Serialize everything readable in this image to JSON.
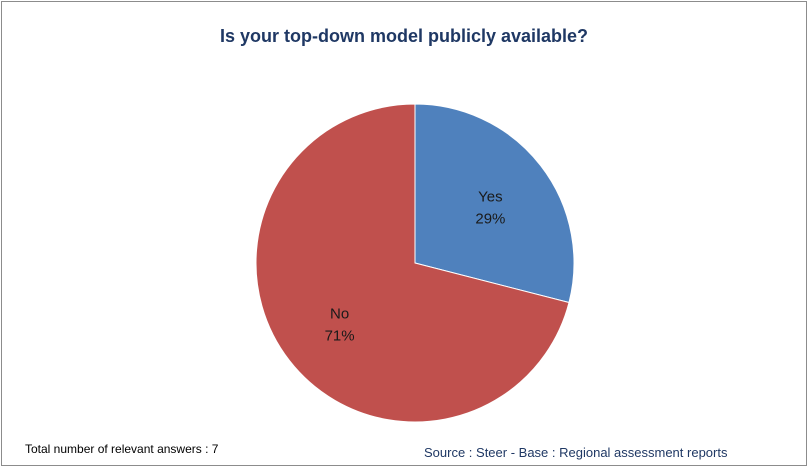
{
  "chart_data": {
    "type": "pie",
    "title": "Is your top-down model publicly available?",
    "slices": [
      {
        "name": "Yes",
        "label": "Yes",
        "value": 29,
        "value_label": "29%",
        "color": "#4f81bd"
      },
      {
        "name": "No",
        "label": "No",
        "value": 71,
        "value_label": "71%",
        "color": "#c0504d"
      }
    ],
    "start": "12 o'clock",
    "direction": "clockwise",
    "legend": "none",
    "data_labels": "inside"
  },
  "footnotes": {
    "total": "Total number of relevant answers : 7",
    "source": "Source : Steer - Base : Regional assessment reports"
  }
}
